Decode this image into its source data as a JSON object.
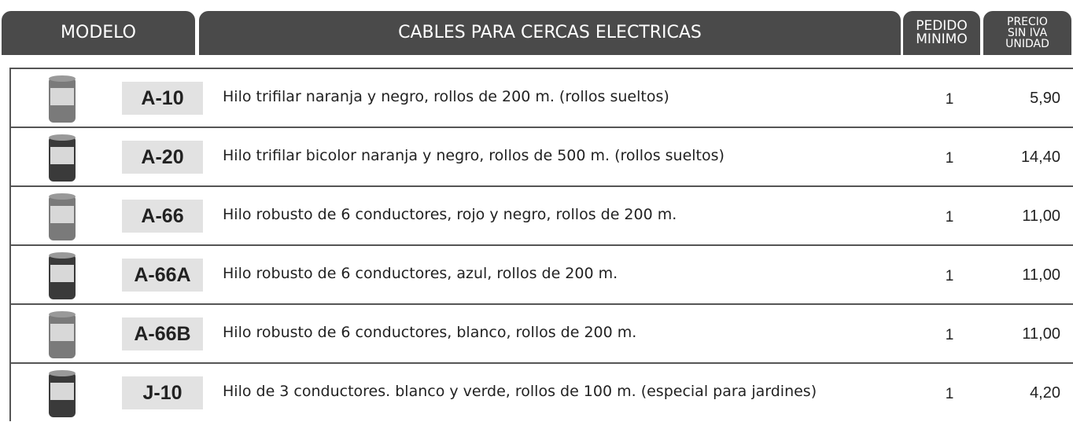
{
  "header": {
    "model": "MODELO",
    "description": "CABLES PARA CERCAS ELECTRICAS",
    "min_order": [
      "PEDIDO",
      "MINIMO"
    ],
    "price": [
      "PRECIO",
      "SIN IVA",
      "UNIDAD"
    ]
  },
  "table": {
    "rows": [
      {
        "model": "A-10",
        "description": "Hilo trifilar naranja y negro, rollos de 200 m. (rollos sueltos)",
        "min_order": 1,
        "price": "5,90"
      },
      {
        "model": "A-20",
        "description": "Hilo trifilar bicolor naranja y negro, rollos de 500 m. (rollos sueltos)",
        "min_order": 1,
        "price": "14,40"
      },
      {
        "model": "A-66",
        "description": "Hilo robusto de 6 conductores, rojo y negro, rollos de 200 m.",
        "min_order": 1,
        "price": "11,00"
      },
      {
        "model": "A-66A",
        "description": "Hilo robusto de 6 conductores, azul, rollos de 200 m.",
        "min_order": 1,
        "price": "11,00"
      },
      {
        "model": "A-66B",
        "description": "Hilo robusto de 6 conductores, blanco, rollos de 200 m.",
        "min_order": 1,
        "price": "11,00"
      },
      {
        "model": "J-10",
        "description": "Hilo de 3 conductores. blanco y verde, rollos de 100 m. (especial para jardines)",
        "min_order": 1,
        "price": "4,20"
      }
    ]
  }
}
